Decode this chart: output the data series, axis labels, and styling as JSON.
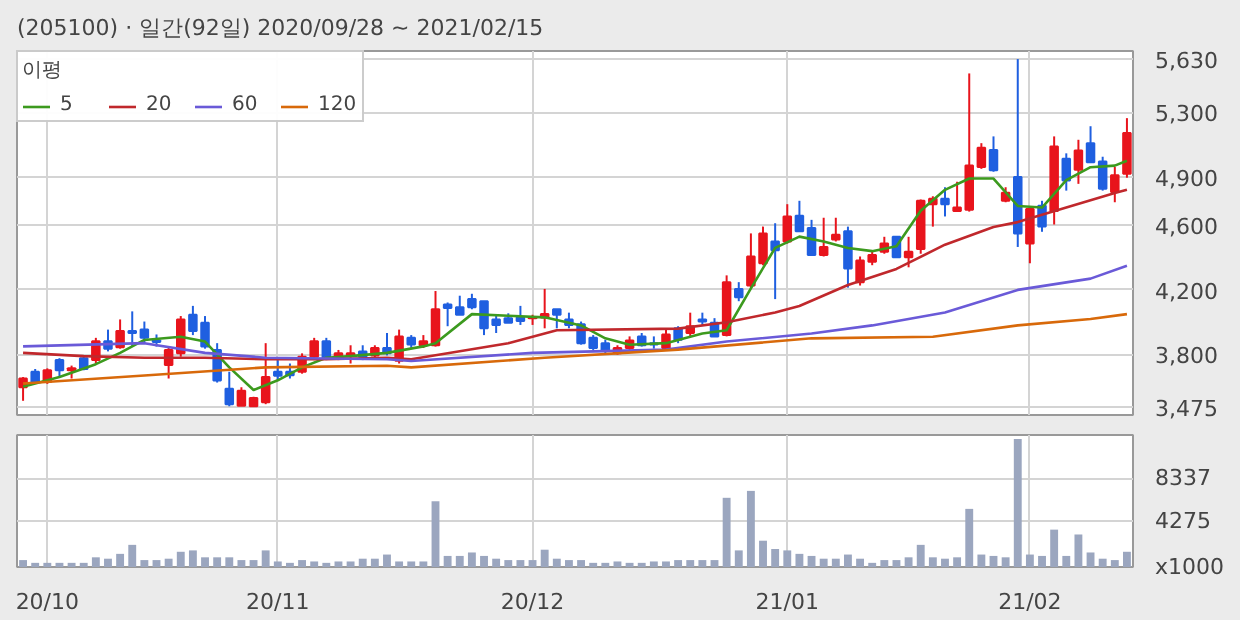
{
  "chart_data": [
    {
      "type": "candlestick",
      "title": "(205100) · 일간(92일) 2020/09/28 ~ 2021/02/15",
      "legend_title": "이평",
      "legend": "top left",
      "grid": true,
      "tick_labels": "y",
      "categories": [
        null,
        null,
        null,
        null,
        null,
        null,
        null,
        null,
        null,
        null,
        null,
        null,
        null,
        null,
        null,
        null,
        null,
        null,
        null,
        null,
        null,
        null,
        null,
        null,
        null,
        null,
        null,
        null,
        null,
        null,
        null,
        null,
        null,
        null,
        null,
        null,
        null,
        null,
        null,
        null,
        null,
        null,
        null,
        null,
        null,
        null,
        null,
        null,
        null,
        null,
        null,
        null,
        null,
        null,
        null,
        null,
        null,
        null,
        null,
        null,
        null,
        null,
        null,
        null,
        null,
        null,
        null,
        null,
        null,
        null,
        null,
        null,
        null,
        null,
        null,
        null,
        null,
        null,
        null,
        null,
        null,
        null,
        null,
        null,
        null,
        null,
        null,
        null,
        null,
        null,
        null,
        null
      ],
      "ylim": [
        3425,
        5680
      ],
      "yticks": [
        {
          "value": 3475,
          "label": "3,475"
        },
        {
          "value": 3800,
          "label": "3,800"
        },
        {
          "value": 4200,
          "label": "4,200"
        },
        {
          "value": 4600,
          "label": "4,600"
        },
        {
          "value": 4900,
          "label": "4,900"
        },
        {
          "value": 5300,
          "label": "5,300"
        },
        {
          "value": 5630,
          "label": "5,630"
        }
      ],
      "ohlc": [
        [
          3597,
          3660,
          3513,
          3651
        ],
        [
          3693,
          3710,
          3618,
          3630
        ],
        [
          3630,
          3714,
          3618,
          3702
        ],
        [
          3765,
          3777,
          3660,
          3702
        ],
        [
          3702,
          3731,
          3651,
          3714
        ],
        [
          3777,
          3794,
          3702,
          3710
        ],
        [
          3765,
          3903,
          3744,
          3882
        ],
        [
          3882,
          3954,
          3819,
          3836
        ],
        [
          3844,
          4017,
          3836,
          3945
        ],
        [
          3945,
          4067,
          3849,
          3933
        ],
        [
          3954,
          4004,
          3870,
          3903
        ],
        [
          3887,
          3924,
          3849,
          3878
        ],
        [
          3735,
          3849,
          3651,
          3828
        ],
        [
          3807,
          4038,
          3786,
          4017
        ],
        [
          4046,
          4101,
          3920,
          3945
        ],
        [
          3996,
          4038,
          3836,
          3849
        ],
        [
          3828,
          3870,
          3626,
          3639
        ],
        [
          3588,
          3693,
          3479,
          3492
        ],
        [
          3483,
          3597,
          3483,
          3576
        ],
        [
          3479,
          3538,
          3475,
          3530
        ],
        [
          3504,
          3870,
          3492,
          3660
        ],
        [
          3693,
          3765,
          3639,
          3668
        ],
        [
          3693,
          3744,
          3651,
          3672
        ],
        [
          3693,
          3807,
          3681,
          3786
        ],
        [
          3786,
          3903,
          3765,
          3882
        ],
        [
          3882,
          3903,
          3765,
          3777
        ],
        [
          3786,
          3828,
          3765,
          3807
        ],
        [
          3794,
          3857,
          3744,
          3807
        ],
        [
          3819,
          3857,
          3765,
          3786
        ],
        [
          3794,
          3857,
          3777,
          3840
        ],
        [
          3840,
          3933,
          3794,
          3807
        ],
        [
          3761,
          3954,
          3744,
          3912
        ],
        [
          3903,
          3920,
          3836,
          3861
        ],
        [
          3857,
          3920,
          3840,
          3882
        ],
        [
          3857,
          4193,
          3849,
          4080
        ],
        [
          4109,
          4122,
          3975,
          4088
        ],
        [
          4092,
          4164,
          4046,
          4046
        ],
        [
          4143,
          4176,
          4080,
          4092
        ],
        [
          4130,
          4130,
          3920,
          3962
        ],
        [
          4017,
          4046,
          3933,
          3983
        ],
        [
          4025,
          4055,
          3996,
          3996
        ],
        [
          4029,
          4101,
          3983,
          4008
        ],
        [
          4025,
          4046,
          3983,
          4029
        ],
        [
          4029,
          4206,
          3962,
          4050
        ],
        [
          4080,
          4080,
          3962,
          4046
        ],
        [
          4017,
          4059,
          3962,
          3983
        ],
        [
          3987,
          4004,
          3861,
          3870
        ],
        [
          3903,
          3920,
          3828,
          3840
        ],
        [
          3870,
          3891,
          3807,
          3828
        ],
        [
          3807,
          3857,
          3798,
          3840
        ],
        [
          3840,
          3912,
          3828,
          3887
        ],
        [
          3912,
          3933,
          3849,
          3857
        ],
        [
          3870,
          3912,
          3836,
          3861
        ],
        [
          3840,
          3954,
          3828,
          3924
        ],
        [
          3962,
          3975,
          3870,
          3891
        ],
        [
          3933,
          4059,
          3912,
          3975
        ],
        [
          4017,
          4059,
          3983,
          4004
        ],
        [
          3996,
          4025,
          3912,
          3912
        ],
        [
          3920,
          4290,
          3912,
          4248
        ],
        [
          4206,
          4248,
          4130,
          4155
        ],
        [
          4227,
          4550,
          4214,
          4407
        ],
        [
          4365,
          4592,
          4353,
          4550
        ],
        [
          4500,
          4613,
          4143,
          4445
        ],
        [
          4500,
          4731,
          4487,
          4655
        ],
        [
          4659,
          4752,
          4563,
          4563
        ],
        [
          4584,
          4634,
          4416,
          4416
        ],
        [
          4416,
          4647,
          4407,
          4466
        ],
        [
          4512,
          4647,
          4500,
          4542
        ],
        [
          4563,
          4592,
          4214,
          4332
        ],
        [
          4248,
          4407,
          4227,
          4382
        ],
        [
          4374,
          4445,
          4353,
          4416
        ],
        [
          4437,
          4529,
          4424,
          4487
        ],
        [
          4529,
          4533,
          4399,
          4403
        ],
        [
          4403,
          4529,
          4340,
          4437
        ],
        [
          4454,
          4760,
          4424,
          4752
        ],
        [
          4731,
          4780,
          4592,
          4764
        ],
        [
          4764,
          4836,
          4655,
          4731
        ],
        [
          4689,
          4870,
          4685,
          4710
        ],
        [
          4697,
          5541,
          4685,
          4970
        ],
        [
          4962,
          5109,
          4950,
          5080
        ],
        [
          5067,
          5151,
          4932,
          4941
        ],
        [
          4752,
          4836,
          4743,
          4802
        ],
        [
          4899,
          5630,
          4466,
          4550
        ],
        [
          4487,
          4718,
          4365,
          4701
        ],
        [
          4722,
          4752,
          4560,
          4592
        ],
        [
          4689,
          5151,
          4605,
          5088
        ],
        [
          5012,
          5046,
          4815,
          4878
        ],
        [
          4945,
          5130,
          4857,
          5063
        ],
        [
          5109,
          5214,
          4987,
          4991
        ],
        [
          4995,
          5025,
          4815,
          4827
        ],
        [
          4806,
          4962,
          4743,
          4911
        ],
        [
          4920,
          5264,
          4895,
          5172
        ]
      ],
      "series": [
        {
          "name": "5",
          "type": "line",
          "color": "#3c9a1e",
          "values": [
            3600,
            null,
            null,
            3660,
            null,
            null,
            3740,
            null,
            3810,
            null,
            3890,
            null,
            null,
            3910,
            null,
            3880,
            null,
            3720,
            null,
            3580,
            null,
            3640,
            null,
            3720,
            null,
            3780,
            null,
            3790,
            null,
            null,
            3810,
            null,
            null,
            3850,
            3870,
            null,
            null,
            4050,
            null,
            null,
            4040,
            null,
            null,
            4030,
            null,
            null,
            3980,
            null,
            3900,
            null,
            3860,
            null,
            null,
            3870,
            null,
            null,
            3930,
            null,
            3950,
            null,
            4210,
            null,
            4460,
            null,
            4530,
            null,
            4500,
            null,
            4460,
            null,
            4440,
            null,
            4470,
            null,
            4690,
            null,
            4820,
            null,
            4890,
            null,
            4890,
            null,
            4720,
            null,
            4710,
            null,
            4880,
            null,
            4960,
            null,
            4970,
            5000
          ]
        },
        {
          "name": "20",
          "type": "line",
          "color": "#c0282c",
          "values": [
            3810,
            null,
            null,
            null,
            null,
            3790,
            null,
            null,
            null,
            null,
            3780,
            null,
            null,
            null,
            null,
            3780,
            null,
            null,
            null,
            null,
            3770,
            null,
            null,
            null,
            null,
            3770,
            null,
            null,
            null,
            null,
            3780,
            null,
            3770,
            null,
            null,
            null,
            null,
            null,
            null,
            null,
            3870,
            null,
            null,
            null,
            3950,
            null,
            null,
            null,
            null,
            null,
            null,
            null,
            null,
            null,
            3960,
            null,
            null,
            null,
            4000,
            null,
            null,
            null,
            4060,
            null,
            4100,
            null,
            null,
            null,
            4230,
            null,
            null,
            null,
            4330,
            null,
            null,
            null,
            4480,
            null,
            null,
            null,
            4590,
            null,
            4620,
            null,
            null,
            null,
            4710,
            null,
            null,
            null,
            4800,
            4820
          ]
        },
        {
          "name": "60",
          "type": "line",
          "color": "#6a5ad8",
          "values": [
            3850,
            null,
            null,
            null,
            null,
            null,
            null,
            null,
            null,
            null,
            3870,
            null,
            null,
            null,
            null,
            3810,
            null,
            null,
            null,
            null,
            3780,
            null,
            null,
            null,
            null,
            null,
            null,
            null,
            null,
            null,
            3770,
            null,
            3760,
            null,
            null,
            null,
            null,
            null,
            null,
            null,
            null,
            null,
            3810,
            null,
            null,
            null,
            null,
            null,
            null,
            null,
            null,
            null,
            null,
            3830,
            null,
            null,
            null,
            null,
            3880,
            null,
            null,
            null,
            null,
            null,
            null,
            3930,
            null,
            null,
            null,
            null,
            3980,
            null,
            null,
            null,
            null,
            null,
            4060,
            null,
            null,
            null,
            null,
            null,
            4200,
            null,
            null,
            null,
            null,
            null,
            4270,
            null,
            null,
            4350
          ]
        },
        {
          "name": "120",
          "type": "line",
          "color": "#d8690a",
          "values": [
            3620,
            null,
            null,
            null,
            null,
            null,
            null,
            null,
            null,
            null,
            3670,
            null,
            null,
            null,
            null,
            null,
            null,
            null,
            null,
            null,
            3720,
            null,
            null,
            null,
            null,
            null,
            null,
            null,
            null,
            null,
            3730,
            null,
            3720,
            null,
            null,
            null,
            null,
            null,
            null,
            null,
            null,
            null,
            null,
            3780,
            null,
            null,
            null,
            null,
            null,
            null,
            null,
            null,
            null,
            null,
            3830,
            null,
            null,
            null,
            null,
            null,
            null,
            null,
            null,
            null,
            null,
            3900,
            null,
            null,
            null,
            null,
            null,
            null,
            null,
            null,
            null,
            3910,
            null,
            null,
            null,
            null,
            null,
            null,
            3980,
            null,
            null,
            null,
            null,
            null,
            4020,
            null,
            null,
            4050
          ]
        }
      ]
    },
    {
      "type": "bar",
      "grid": true,
      "color": "#9ba6bf",
      "categories": [
        null,
        null,
        "20/10",
        null,
        null,
        null,
        null,
        null,
        null,
        null,
        null,
        null,
        null,
        null,
        null,
        null,
        null,
        null,
        null,
        null,
        null,
        "20/11",
        null,
        null,
        null,
        null,
        null,
        null,
        null,
        null,
        null,
        null,
        null,
        null,
        null,
        null,
        null,
        null,
        null,
        null,
        null,
        null,
        "20/12",
        null,
        null,
        null,
        null,
        null,
        null,
        null,
        null,
        null,
        null,
        null,
        null,
        null,
        null,
        null,
        null,
        null,
        null,
        null,
        null,
        "21/01",
        null,
        null,
        null,
        null,
        null,
        null,
        null,
        null,
        null,
        null,
        null,
        null,
        null,
        null,
        null,
        null,
        null,
        null,
        null,
        "21/02",
        null,
        null,
        null,
        null,
        null,
        null,
        null,
        null
      ],
      "ylim": [
        0,
        12400
      ],
      "yticks": [
        {
          "value": 0,
          "label": "x1000"
        },
        4275,
        8337
      ],
      "values": [
        650,
        390,
        390,
        390,
        390,
        390,
        910,
        780,
        1235,
        2080,
        650,
        650,
        780,
        1430,
        1560,
        910,
        910,
        910,
        650,
        650,
        1560,
        520,
        390,
        650,
        520,
        390,
        520,
        520,
        780,
        780,
        1170,
        520,
        520,
        520,
        6175,
        1040,
        1040,
        1365,
        1040,
        780,
        650,
        650,
        650,
        1625,
        780,
        650,
        650,
        390,
        390,
        520,
        390,
        390,
        520,
        520,
        650,
        650,
        650,
        650,
        6500,
        1560,
        7150,
        2470,
        1690,
        1560,
        1235,
        1040,
        780,
        780,
        1170,
        780,
        390,
        650,
        650,
        910,
        2080,
        910,
        780,
        910,
        5460,
        1170,
        1040,
        910,
        12025,
        1170,
        1040,
        3510,
        1040,
        3055,
        1365,
        780,
        650,
        1430
      ]
    }
  ]
}
